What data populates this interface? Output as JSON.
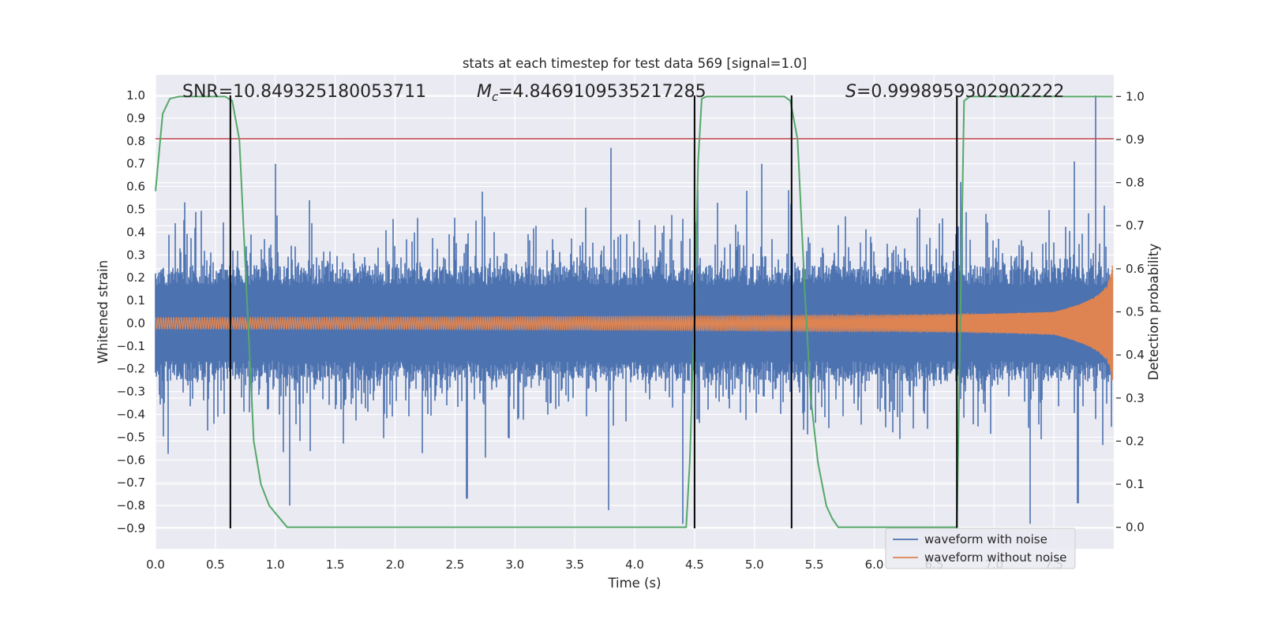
{
  "chart_data": {
    "type": "line",
    "title": "stats at each timestep for test data 569 [signal=1.0]",
    "xlabel": "Time (s)",
    "ylabel": "Whitened strain",
    "y2label": "Detection probability",
    "xlim": [
      0.0,
      8.0
    ],
    "ylim": [
      -0.99,
      1.09
    ],
    "y2lim": [
      -0.05,
      1.05
    ],
    "x_ticks": [
      0.0,
      0.5,
      1.0,
      1.5,
      2.0,
      2.5,
      3.0,
      3.5,
      4.0,
      4.5,
      5.0,
      5.5,
      6.0,
      6.5,
      7.0,
      7.5
    ],
    "x_tick_labels": [
      "0.0",
      "0.5",
      "1.0",
      "1.5",
      "2.0",
      "2.5",
      "3.0",
      "3.5",
      "4.0",
      "4.5",
      "5.0",
      "5.5",
      "6.0",
      "6.5",
      "7.0",
      "7.5"
    ],
    "y_ticks": [
      1.0,
      0.9,
      0.8,
      0.7,
      0.6,
      0.5,
      0.4,
      0.3,
      0.2,
      0.1,
      0.0,
      -0.1,
      -0.2,
      -0.3,
      -0.4,
      -0.5,
      -0.6,
      -0.7,
      -0.8,
      -0.9
    ],
    "y_tick_labels": [
      "1.0",
      "0.9",
      "0.8",
      "0.7",
      "0.6",
      "0.5",
      "0.4",
      "0.3",
      "0.2",
      "0.1",
      "0.0",
      "−0.1",
      "−0.2",
      "−0.3",
      "−0.4",
      "−0.5",
      "−0.6",
      "−0.7",
      "−0.8",
      "−0.9"
    ],
    "y2_ticks": [
      1.0,
      0.9,
      0.8,
      0.7,
      0.6,
      0.5,
      0.4,
      0.3,
      0.2,
      0.1,
      0.0
    ],
    "y2_tick_labels": [
      "1.0",
      "0.9",
      "0.8",
      "0.7",
      "0.6",
      "0.5",
      "0.4",
      "0.3",
      "0.2",
      "0.1",
      "0.0"
    ],
    "grid": true,
    "annotations": {
      "snr": "SNR=10.849325180053711",
      "mc_symbol": "M",
      "mc_sub": "c",
      "mc_value": "=4.8469109535217285",
      "s_symbol": "S",
      "s_value": "=0.9998959302902222"
    },
    "threshold_y": 0.81,
    "vertical_markers_x": [
      0.625,
      4.5,
      5.31,
      6.69
    ],
    "vertical_markers_range": [
      -0.9,
      1.0
    ],
    "series": [
      {
        "name": "waveform with noise",
        "color": "#4c72b0",
        "kind": "noise",
        "sample_rate_hz": 2048,
        "typical_envelope": 0.3,
        "extreme_peaks": [
          {
            "x": 3.8,
            "y": 0.77
          },
          {
            "x": 7.85,
            "y": 1.0
          },
          {
            "x": 4.4,
            "y": -0.88
          },
          {
            "x": 7.3,
            "y": -0.88
          },
          {
            "x": 3.78,
            "y": -0.82
          },
          {
            "x": 1.12,
            "y": -0.8
          },
          {
            "x": 7.7,
            "y": -0.79
          },
          {
            "x": 2.6,
            "y": -0.77
          },
          {
            "x": 1.0,
            "y": 0.7
          },
          {
            "x": 5.06,
            "y": 0.7
          },
          {
            "x": 7.67,
            "y": 0.71
          },
          {
            "x": 6.72,
            "y": 0.62
          }
        ]
      },
      {
        "name": "waveform without noise",
        "color": "#dd8452",
        "kind": "chirp",
        "t_coalescence": 8.0,
        "amplitude_start": 0.025,
        "amplitude_peak": 0.3
      },
      {
        "name": "detection probability",
        "color": "#55a868",
        "axis": "right",
        "x": [
          0.0,
          0.06,
          0.12,
          0.2,
          0.3,
          0.4,
          0.5,
          0.58,
          0.64,
          0.7,
          0.76,
          0.82,
          0.88,
          0.95,
          1.1,
          1.5,
          1.65,
          1.8,
          2.5,
          3.5,
          4.3,
          4.38,
          4.43,
          4.46,
          4.5,
          4.53,
          4.56,
          4.6,
          5.0,
          5.25,
          5.3,
          5.36,
          5.42,
          5.47,
          5.53,
          5.6,
          5.65,
          5.7,
          5.8,
          6.5,
          6.64,
          6.69,
          6.72,
          6.75,
          6.8,
          7.0,
          7.5,
          7.99
        ],
        "y": [
          0.78,
          0.96,
          0.995,
          1.0,
          1.0,
          1.0,
          1.0,
          1.0,
          0.99,
          0.9,
          0.55,
          0.2,
          0.1,
          0.05,
          0.0,
          0.0,
          0.0,
          0.0,
          0.0,
          0.0,
          0.0,
          0.0,
          0.0,
          0.15,
          0.5,
          0.85,
          0.995,
          1.0,
          1.0,
          1.0,
          0.99,
          0.9,
          0.55,
          0.3,
          0.15,
          0.05,
          0.02,
          0.0,
          0.0,
          0.0,
          0.0,
          0.0,
          0.5,
          0.99,
          1.0,
          1.0,
          1.0,
          1.0
        ]
      },
      {
        "name": "detection threshold",
        "color": "#c44e52"
      },
      {
        "name": "segment marker",
        "color": "#000000"
      }
    ],
    "legend": {
      "placement": "lower-right",
      "entries": [
        "waveform with noise",
        "waveform without noise"
      ]
    }
  }
}
